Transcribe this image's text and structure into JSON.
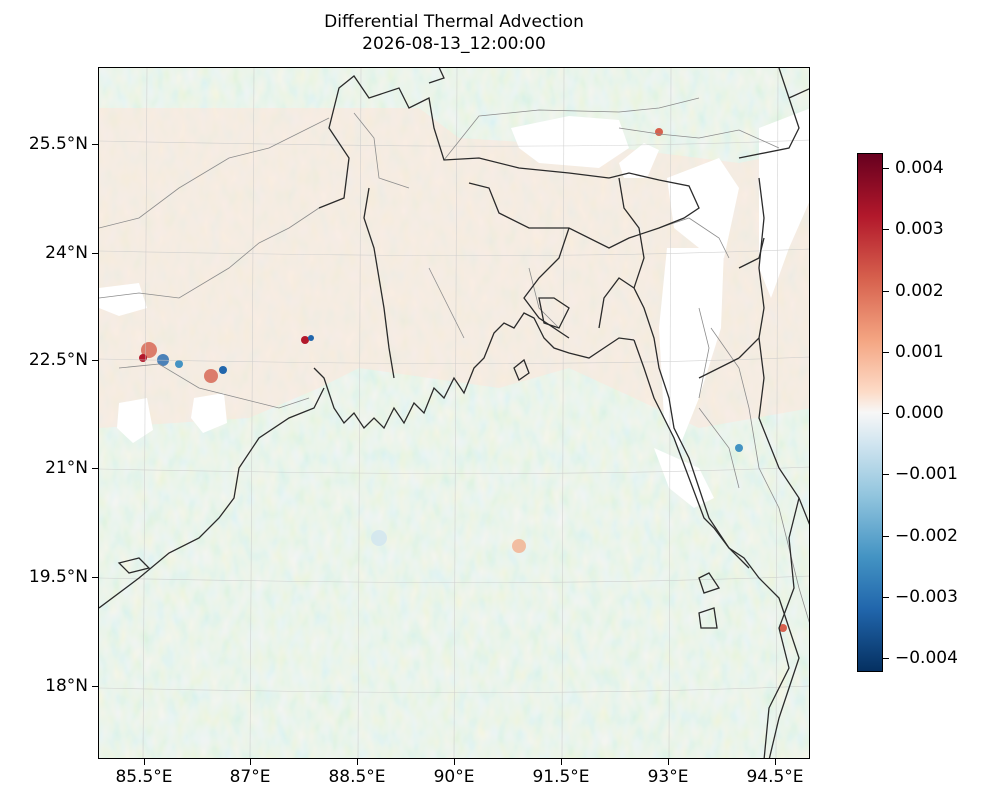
{
  "title": {
    "line1": "Differential Thermal Advection",
    "line2": "2026-08-13_12:00:00"
  },
  "axes": {
    "lat_ticks": [
      "25.5°N",
      "24°N",
      "22.5°N",
      "21°N",
      "19.5°N",
      "18°N"
    ],
    "lon_ticks": [
      "85.5°E",
      "87°E",
      "88.5°E",
      "90°E",
      "91.5°E",
      "93°E",
      "94.5°E"
    ],
    "gridlines": true
  },
  "colorbar": {
    "colormap": "RdBu_r",
    "range": [
      -0.0042,
      0.0042
    ],
    "ticks": [
      "0.004",
      "0.003",
      "0.002",
      "0.001",
      "0.000",
      "−0.001",
      "−0.002",
      "−0.003",
      "−0.004"
    ],
    "colors": {
      "max": "#67001f",
      "mid": "#f7f7f7",
      "min": "#053061"
    }
  },
  "map": {
    "region": "Bay of Bengal / Bangladesh",
    "features": [
      "coastline",
      "country-borders",
      "state-borders",
      "missing-data-white-patches"
    ],
    "extent_lon": [
      84.8,
      95.0
    ],
    "extent_lat": [
      16.9,
      26.6
    ]
  }
}
